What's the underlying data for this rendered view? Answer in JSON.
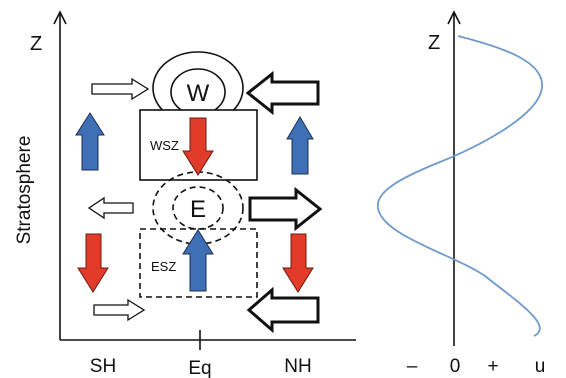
{
  "left_panel": {
    "z_axis_label": "Z",
    "y_axis_title": "Stratosphere",
    "x_tick_labels": [
      "SH",
      "Eq",
      "NH"
    ],
    "westerly_circle_label": "W",
    "easterly_circle_label": "E",
    "westerly_shear_zone_label": "WSZ",
    "easterly_shear_zone_label": "ESZ"
  },
  "right_panel": {
    "z_axis_label": "Z",
    "x_tick_labels": [
      "–",
      "0",
      "+",
      "u"
    ]
  },
  "colors": {
    "ascent_arrow": "#3f6fb5",
    "descent_arrow": "#e23b2a",
    "profile_curve": "#6f9acb",
    "outline": "#111111"
  },
  "icons": {
    "vertical_up": "blue-up-arrow-icon",
    "vertical_down": "red-down-arrow-icon",
    "horizontal_flow": "hollow-horizontal-arrow-icon"
  }
}
